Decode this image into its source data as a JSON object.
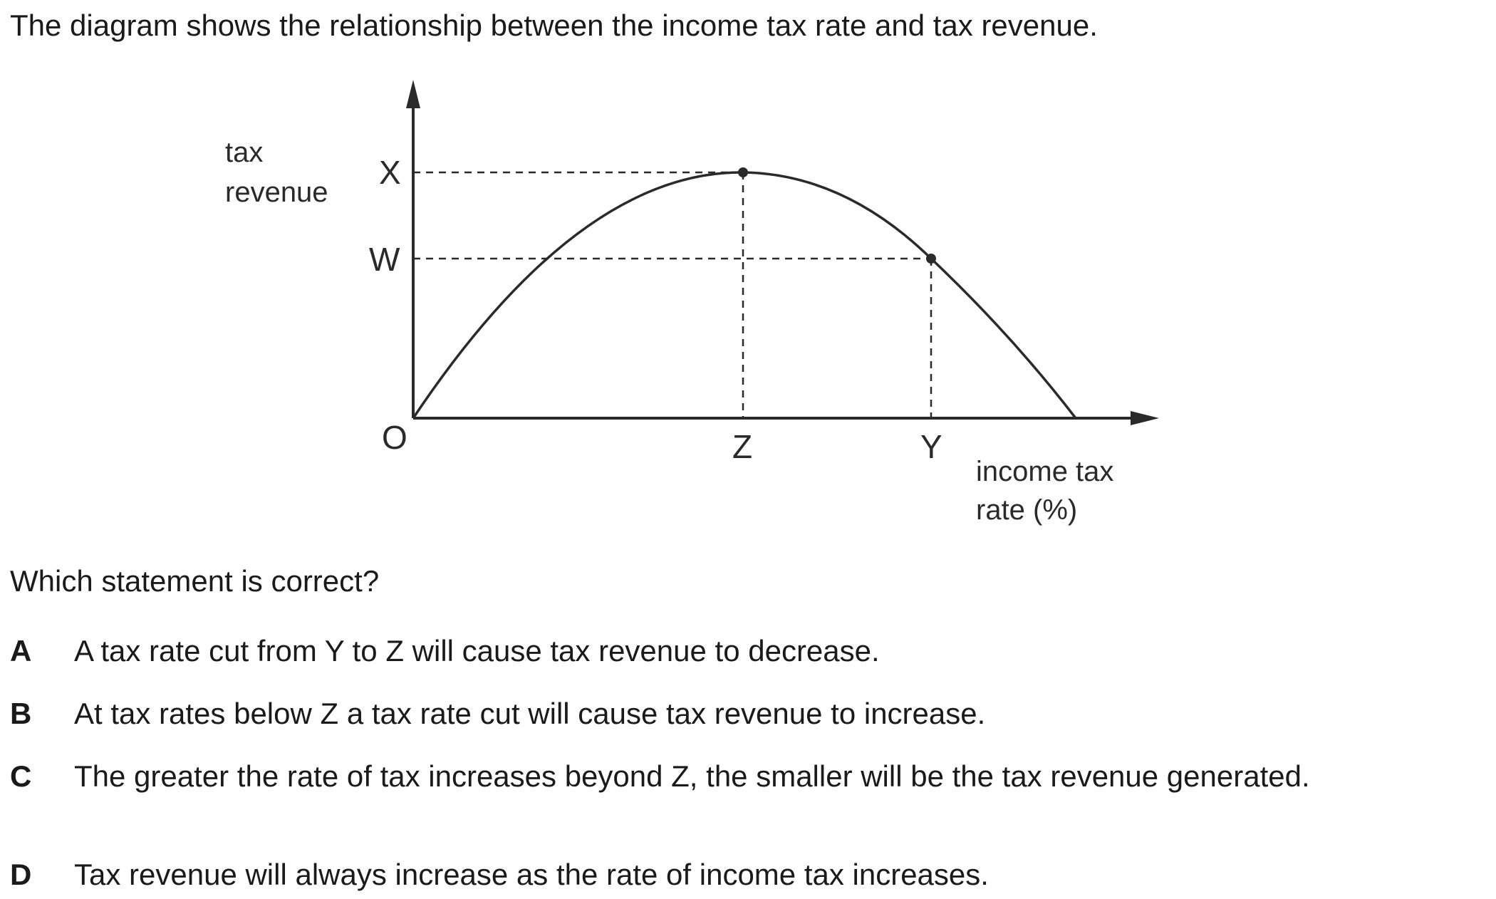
{
  "question": {
    "intro": "The diagram shows the relationship between the income tax rate and tax revenue.",
    "prompt": "Which statement is correct?",
    "options": [
      {
        "letter": "A",
        "text": "A tax rate cut from Y to Z will cause tax revenue to decrease."
      },
      {
        "letter": "B",
        "text": "At tax rates below Z a tax rate cut will cause tax revenue to increase."
      },
      {
        "letter": "C",
        "text": "The greater the rate of tax increases beyond Z, the smaller will be the tax revenue generated."
      },
      {
        "letter": "D",
        "text": "Tax revenue will always increase as the rate of income tax increases."
      }
    ]
  },
  "diagram": {
    "y_axis_label_line1": "tax",
    "y_axis_label_line2": "revenue",
    "x_axis_label_line1": "income tax",
    "x_axis_label_line2": "rate (%)",
    "origin_label": "O",
    "y_ticks": [
      "X",
      "W"
    ],
    "x_ticks": [
      "Z",
      "Y"
    ],
    "curve": "inverted parabola from O, peak at (Z, X), passing (Y, W), returning to zero revenue",
    "line_color": "#2a2a2a"
  }
}
